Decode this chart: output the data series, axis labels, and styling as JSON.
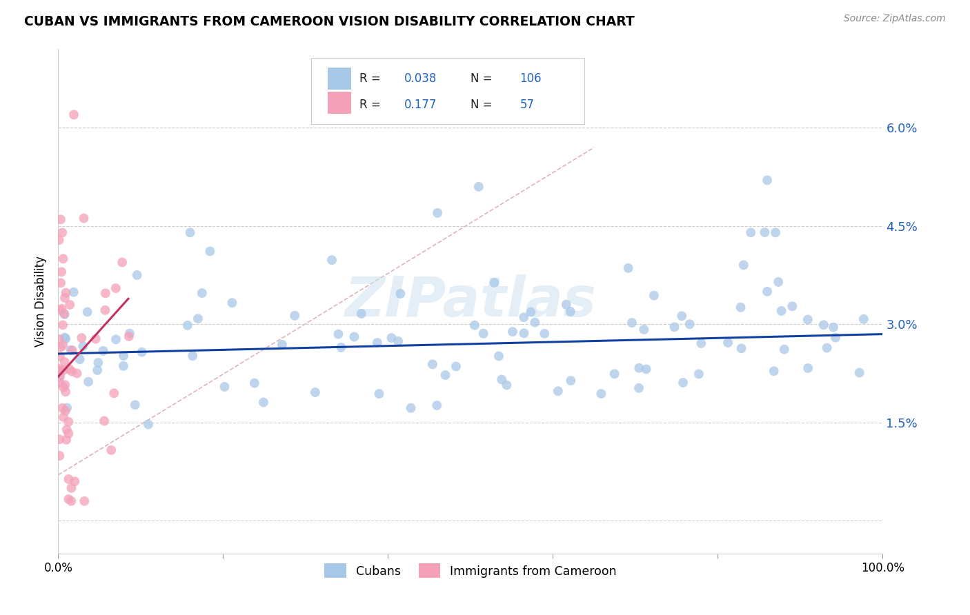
{
  "title": "CUBAN VS IMMIGRANTS FROM CAMEROON VISION DISABILITY CORRELATION CHART",
  "source": "Source: ZipAtlas.com",
  "ylabel": "Vision Disability",
  "yticks": [
    0.0,
    0.015,
    0.03,
    0.045,
    0.06
  ],
  "ytick_labels": [
    "",
    "1.5%",
    "3.0%",
    "4.5%",
    "6.0%"
  ],
  "xlim": [
    0.0,
    1.0
  ],
  "ylim": [
    -0.005,
    0.072
  ],
  "blue_R": 0.038,
  "blue_N": 106,
  "pink_R": 0.177,
  "pink_N": 57,
  "blue_color": "#a8c8e8",
  "pink_color": "#f4a0b8",
  "blue_line_color": "#1040a0",
  "pink_line_color": "#c03060",
  "diag_line_color": "#d08090",
  "grid_color": "#cccccc",
  "background_color": "#ffffff",
  "watermark": "ZIPatlas",
  "legend_label_blue": "Cubans",
  "legend_label_pink": "Immigrants from Cameroon"
}
